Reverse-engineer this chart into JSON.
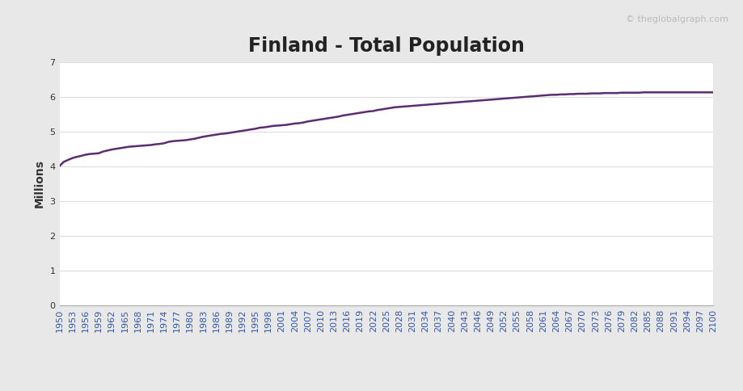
{
  "title": "Finland - Total Population",
  "ylabel": "Millions",
  "watermark": "© theglobalgraph.com",
  "line_color": "#5B2C6F",
  "background_color": "#ffffff",
  "outer_bg": "#e8e8e8",
  "ylim": [
    0,
    7
  ],
  "yticks": [
    0,
    1,
    2,
    3,
    4,
    5,
    6,
    7
  ],
  "years": [
    1950,
    1951,
    1952,
    1953,
    1954,
    1955,
    1956,
    1957,
    1958,
    1959,
    1960,
    1961,
    1962,
    1963,
    1964,
    1965,
    1966,
    1967,
    1968,
    1969,
    1970,
    1971,
    1972,
    1973,
    1974,
    1975,
    1976,
    1977,
    1978,
    1979,
    1980,
    1981,
    1982,
    1983,
    1984,
    1985,
    1986,
    1987,
    1988,
    1989,
    1990,
    1991,
    1992,
    1993,
    1994,
    1995,
    1996,
    1997,
    1998,
    1999,
    2000,
    2001,
    2002,
    2003,
    2004,
    2005,
    2006,
    2007,
    2008,
    2009,
    2010,
    2011,
    2012,
    2013,
    2014,
    2015,
    2016,
    2017,
    2018,
    2019,
    2020,
    2021,
    2022,
    2023,
    2024,
    2025,
    2026,
    2027,
    2028,
    2029,
    2030,
    2031,
    2032,
    2033,
    2034,
    2035,
    2036,
    2037,
    2038,
    2039,
    2040,
    2041,
    2042,
    2043,
    2044,
    2045,
    2046,
    2047,
    2048,
    2049,
    2050,
    2051,
    2052,
    2053,
    2054,
    2055,
    2056,
    2057,
    2058,
    2059,
    2060,
    2061,
    2062,
    2063,
    2064,
    2065,
    2066,
    2067,
    2068,
    2069,
    2070,
    2071,
    2072,
    2073,
    2074,
    2075,
    2076,
    2077,
    2078,
    2079,
    2080,
    2081,
    2082,
    2083,
    2084,
    2085,
    2086,
    2087,
    2088,
    2089,
    2090,
    2091,
    2092,
    2093,
    2094,
    2095,
    2096,
    2097,
    2098,
    2099,
    2100
  ],
  "population": [
    4.009,
    4.134,
    4.19,
    4.243,
    4.278,
    4.306,
    4.34,
    4.36,
    4.37,
    4.38,
    4.43,
    4.46,
    4.49,
    4.51,
    4.53,
    4.55,
    4.57,
    4.58,
    4.59,
    4.6,
    4.61,
    4.62,
    4.64,
    4.65,
    4.67,
    4.71,
    4.73,
    4.74,
    4.75,
    4.76,
    4.78,
    4.8,
    4.83,
    4.86,
    4.88,
    4.9,
    4.92,
    4.94,
    4.95,
    4.97,
    4.99,
    5.01,
    5.03,
    5.05,
    5.07,
    5.09,
    5.12,
    5.13,
    5.15,
    5.17,
    5.18,
    5.19,
    5.2,
    5.22,
    5.24,
    5.25,
    5.27,
    5.3,
    5.32,
    5.34,
    5.36,
    5.38,
    5.4,
    5.42,
    5.44,
    5.47,
    5.49,
    5.51,
    5.53,
    5.55,
    5.57,
    5.59,
    5.6,
    5.63,
    5.65,
    5.67,
    5.69,
    5.71,
    5.72,
    5.73,
    5.74,
    5.75,
    5.76,
    5.77,
    5.78,
    5.79,
    5.8,
    5.81,
    5.82,
    5.83,
    5.84,
    5.85,
    5.86,
    5.87,
    5.88,
    5.89,
    5.9,
    5.91,
    5.92,
    5.93,
    5.94,
    5.95,
    5.96,
    5.97,
    5.98,
    5.99,
    6.0,
    6.01,
    6.02,
    6.03,
    6.04,
    6.05,
    6.06,
    6.07,
    6.07,
    6.08,
    6.08,
    6.09,
    6.09,
    6.1,
    6.1,
    6.1,
    6.11,
    6.11,
    6.11,
    6.12,
    6.12,
    6.12,
    6.12,
    6.13,
    6.13,
    6.13,
    6.13,
    6.13,
    6.14,
    6.14,
    6.14,
    6.14,
    6.14,
    6.14,
    6.14,
    6.14,
    6.14,
    6.14,
    6.14,
    6.14,
    6.14,
    6.14,
    6.14,
    6.14,
    6.14
  ],
  "xtick_years": [
    1950,
    1953,
    1956,
    1959,
    1962,
    1965,
    1968,
    1971,
    1974,
    1977,
    1980,
    1983,
    1986,
    1989,
    1992,
    1995,
    1998,
    2001,
    2004,
    2007,
    2010,
    2013,
    2016,
    2019,
    2022,
    2025,
    2028,
    2031,
    2034,
    2037,
    2040,
    2043,
    2046,
    2049,
    2052,
    2055,
    2058,
    2061,
    2064,
    2067,
    2070,
    2073,
    2076,
    2079,
    2082,
    2085,
    2088,
    2091,
    2094,
    2097,
    2100
  ],
  "line_width": 1.8,
  "title_fontsize": 17,
  "tick_fontsize": 8,
  "ylabel_fontsize": 10,
  "grid_color": "#dddddd",
  "spine_color": "#aaaaaa",
  "xtick_color": "#3355aa",
  "ytick_color": "#333333",
  "watermark_color": "#bbbbbb",
  "watermark_fontsize": 8
}
